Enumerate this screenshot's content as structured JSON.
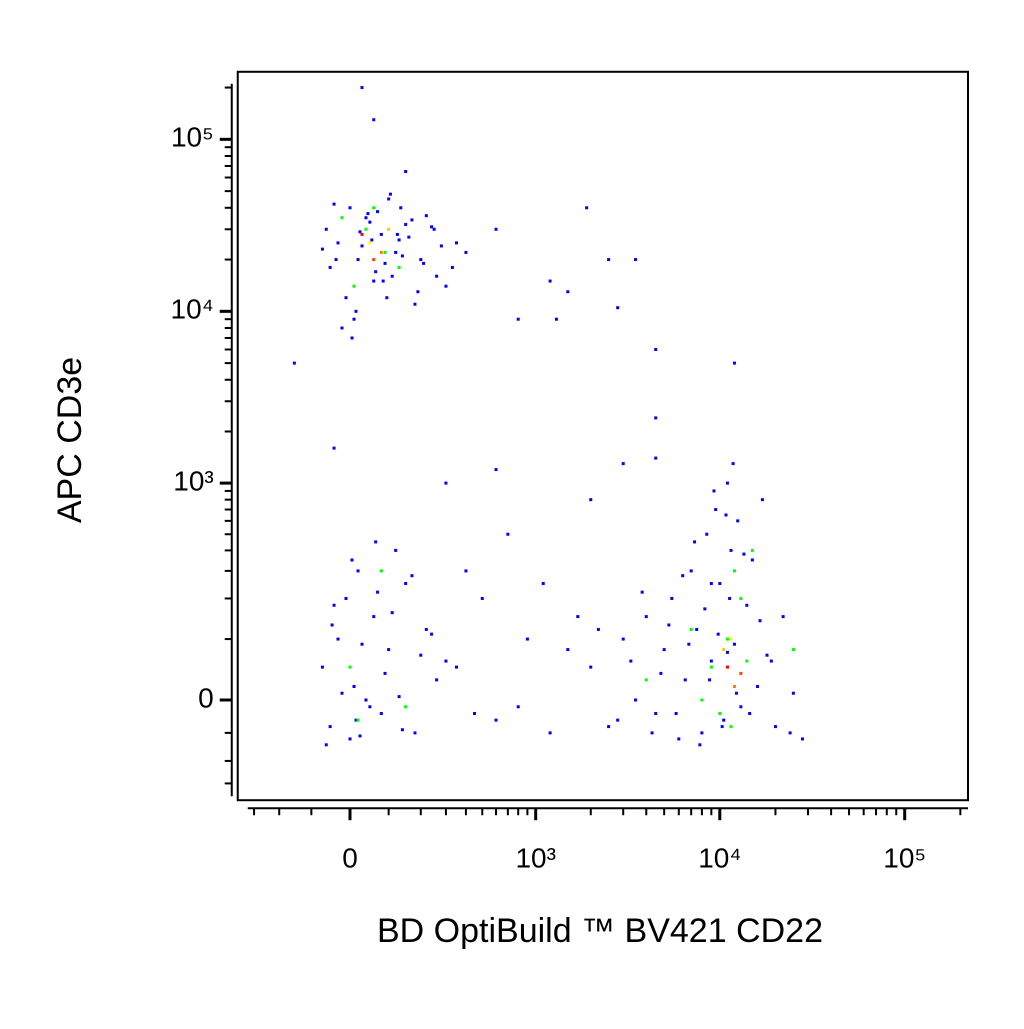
{
  "chart_data": {
    "type": "scatter",
    "xlabel": "BD OptiBuild ™ BV421 CD22",
    "ylabel": "APC CD3e",
    "xscale": "biexponential",
    "yscale": "biexponential",
    "xlim": [
      -380,
      220000
    ],
    "ylim": [
      -196,
      247000
    ],
    "xticks": [
      0,
      {
        "value": 1000,
        "label": "10³"
      },
      {
        "value": 10000,
        "label": "10⁴"
      },
      {
        "value": 100000,
        "label": "10⁵"
      }
    ],
    "yticks": [
      0,
      {
        "value": 1000,
        "label": "10³"
      },
      {
        "value": 10000,
        "label": "10⁴"
      },
      {
        "value": 100000,
        "label": "10⁵"
      }
    ],
    "xminorticks": [
      -300,
      -200,
      -100,
      100,
      200,
      300,
      400,
      500,
      600,
      700,
      800,
      900,
      2000,
      3000,
      4000,
      5000,
      6000,
      7000,
      8000,
      9000,
      20000,
      30000,
      40000,
      50000,
      60000,
      70000,
      80000,
      90000,
      200000
    ],
    "yminorticks": [
      -150,
      -100,
      -50,
      100,
      200,
      300,
      400,
      500,
      600,
      700,
      800,
      900,
      2000,
      3000,
      4000,
      5000,
      6000,
      7000,
      8000,
      9000,
      20000,
      30000,
      40000,
      50000,
      60000,
      70000,
      80000,
      90000,
      200000
    ],
    "series": [
      {
        "color": "#0000ff",
        "x": [
          -60,
          -30,
          0,
          20,
          40,
          60,
          80,
          100,
          120,
          150,
          -50,
          -10,
          30,
          70,
          110,
          160,
          200,
          250,
          300,
          350,
          -40,
          10,
          50,
          90,
          130,
          180,
          220,
          -70,
          -20,
          25,
          65,
          105,
          140,
          190,
          240,
          280,
          330,
          400,
          15,
          45,
          85,
          125,
          170,
          -35,
          5,
          55,
          95,
          135,
          210,
          260,
          30,
          60,
          150,
          -150,
          600,
          1500,
          1900,
          2500,
          3500,
          4500,
          4500,
          12000,
          1300,
          800,
          2800,
          -40,
          300,
          600,
          2000,
          3000,
          4500,
          1200,
          -70,
          -50,
          -30,
          -10,
          0,
          10,
          20,
          40,
          60,
          80,
          100,
          120,
          150,
          180,
          220,
          260,
          300,
          -60,
          -40,
          -20,
          5,
          15,
          30,
          50,
          70,
          90,
          110,
          140,
          170,
          200,
          -45,
          25,
          65,
          130,
          240,
          400,
          500,
          700,
          900,
          350,
          450,
          600,
          800,
          1200,
          1500,
          1700,
          1100,
          2000,
          2500,
          3000,
          3500,
          4000,
          4500,
          5000,
          5500,
          6000,
          6500,
          7000,
          7500,
          8000,
          8500,
          9000,
          9500,
          10000,
          10500,
          11000,
          11500,
          12000,
          12500,
          13000,
          14000,
          15000,
          16000,
          17000,
          18000,
          20000,
          22000,
          25000,
          28000,
          2200,
          2800,
          3300,
          3800,
          4300,
          4800,
          5300,
          5800,
          6300,
          6800,
          7300,
          7800,
          8300,
          8800,
          9300,
          9800,
          10300,
          10800,
          11300,
          11800,
          12300,
          13500,
          14500,
          16500,
          19000,
          24000,
          9000,
          11000
        ],
        "values": [
          30000,
          25000,
          40000,
          20000,
          35000,
          15000,
          28000,
          45000,
          22000,
          32000,
          18000,
          12000,
          24000,
          38000,
          16000,
          27000,
          20000,
          30000,
          14000,
          25000,
          42000,
          9000,
          33000,
          19000,
          26000,
          11000,
          36000,
          23000,
          8000,
          29000,
          17000,
          48000,
          21000,
          13000,
          31000,
          24000,
          18000,
          22000,
          10000,
          37000,
          15000,
          28000,
          34000,
          20000,
          7000,
          26000,
          12000,
          40000,
          19000,
          16000,
          200000,
          130000,
          65000,
          5000,
          30000,
          13000,
          40000,
          20000,
          20000,
          6000,
          2400,
          5000,
          9000,
          9000,
          10500,
          1600,
          1000,
          1200,
          800,
          1300,
          1400,
          15000,
          50,
          -40,
          100,
          200,
          -60,
          20,
          300,
          0,
          150,
          -20,
          80,
          400,
          250,
          -50,
          120,
          30,
          60,
          -70,
          180,
          10,
          350,
          -30,
          90,
          -10,
          220,
          40,
          160,
          -45,
          280,
          70,
          130,
          -55,
          450,
          5,
          110,
          300,
          200,
          500,
          100,
          50,
          -20,
          -30,
          -10,
          -50,
          80,
          150,
          250,
          50,
          -40,
          100,
          0,
          150,
          -20,
          80,
          200,
          -60,
          30,
          300,
          120,
          -50,
          500,
          60,
          700,
          250,
          -30,
          1000,
          400,
          90,
          600,
          -10,
          180,
          350,
          20,
          800,
          70,
          -40,
          150,
          10,
          -60,
          120,
          -30,
          60,
          220,
          -50,
          40,
          130,
          -20,
          280,
          90,
          450,
          -70,
          170,
          30,
          900,
          110,
          -40,
          650,
          200,
          1300,
          10,
          380,
          -20,
          140,
          60,
          -50,
          250,
          75
        ]
      },
      {
        "color": "#00ff00",
        "x": [
          40,
          90,
          -20,
          130,
          60,
          10,
          9000,
          11000,
          12000,
          10000,
          13000,
          8000,
          14000,
          15000,
          7000,
          4000,
          11500,
          25000,
          0,
          80,
          20,
          150
        ],
        "values": [
          30000,
          22000,
          35000,
          18000,
          40000,
          14000,
          50,
          100,
          300,
          -20,
          200,
          0,
          60,
          400,
          120,
          30,
          -40,
          80,
          50,
          300,
          -30,
          -10
        ]
      },
      {
        "color": "#ffff00",
        "x": [
          50,
          11500
        ],
        "values": [
          25000,
          100
        ]
      },
      {
        "color": "#ffcc00",
        "x": [
          100,
          10500
        ],
        "values": [
          30000,
          80
        ]
      },
      {
        "color": "#ff8000",
        "x": [
          80,
          12000
        ],
        "values": [
          22000,
          20
        ]
      },
      {
        "color": "#ff4000",
        "x": [
          60,
          13000
        ],
        "values": [
          20000,
          40
        ]
      },
      {
        "color": "#ff0000",
        "x": [
          30,
          11000
        ],
        "values": [
          28000,
          50
        ]
      }
    ]
  }
}
